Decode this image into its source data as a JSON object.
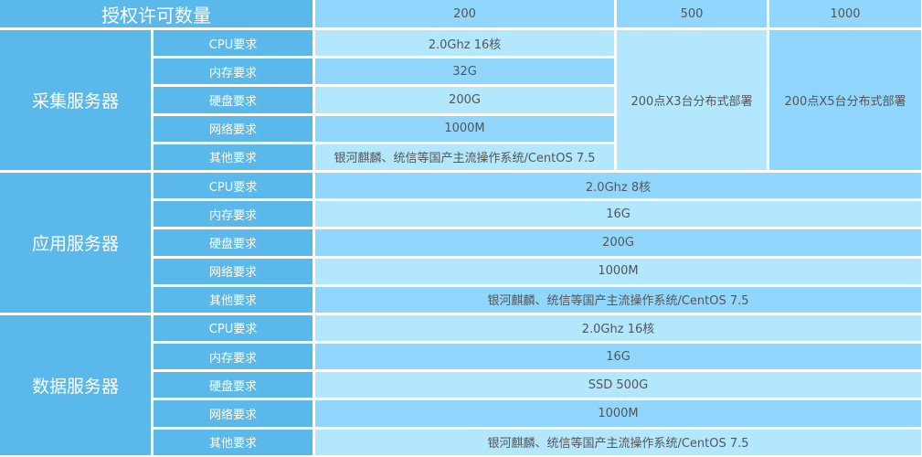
{
  "header": {
    "title": "授权许可数量",
    "tiers": [
      "200",
      "500",
      "1000"
    ]
  },
  "labels": {
    "cpu": "CPU要求",
    "mem": "内存要求",
    "disk": "硬盘要求",
    "net": "网络要求",
    "other": "其他要求"
  },
  "collector": {
    "name": "采集服务器",
    "cpu": "2.0Ghz 16核",
    "mem": "32G",
    "disk": "200G",
    "net": "1000M",
    "other": "银河麒麟、统信等国产主流操作系统/CentOS 7.5",
    "tier500": "200点X3台分布式部署",
    "tier1000": "200点X5台分布式部署"
  },
  "app": {
    "name": "应用服务器",
    "cpu": "2.0Ghz 8核",
    "mem": "16G",
    "disk": "200G",
    "net": "1000M",
    "other": "银河麒麟、统信等国产主流操作系统/CentOS 7.5"
  },
  "data": {
    "name": "数据服务器",
    "cpu": "2.0Ghz 16核",
    "mem": "16G",
    "disk": "SSD 500G",
    "net": "1000M",
    "other": "银河麒麟、统信等国产主流操作系统/CentOS 7.5"
  },
  "colors": {
    "dark": "#5ab8ea",
    "medium": "#91d7fd",
    "light": "#b3e7fe"
  }
}
